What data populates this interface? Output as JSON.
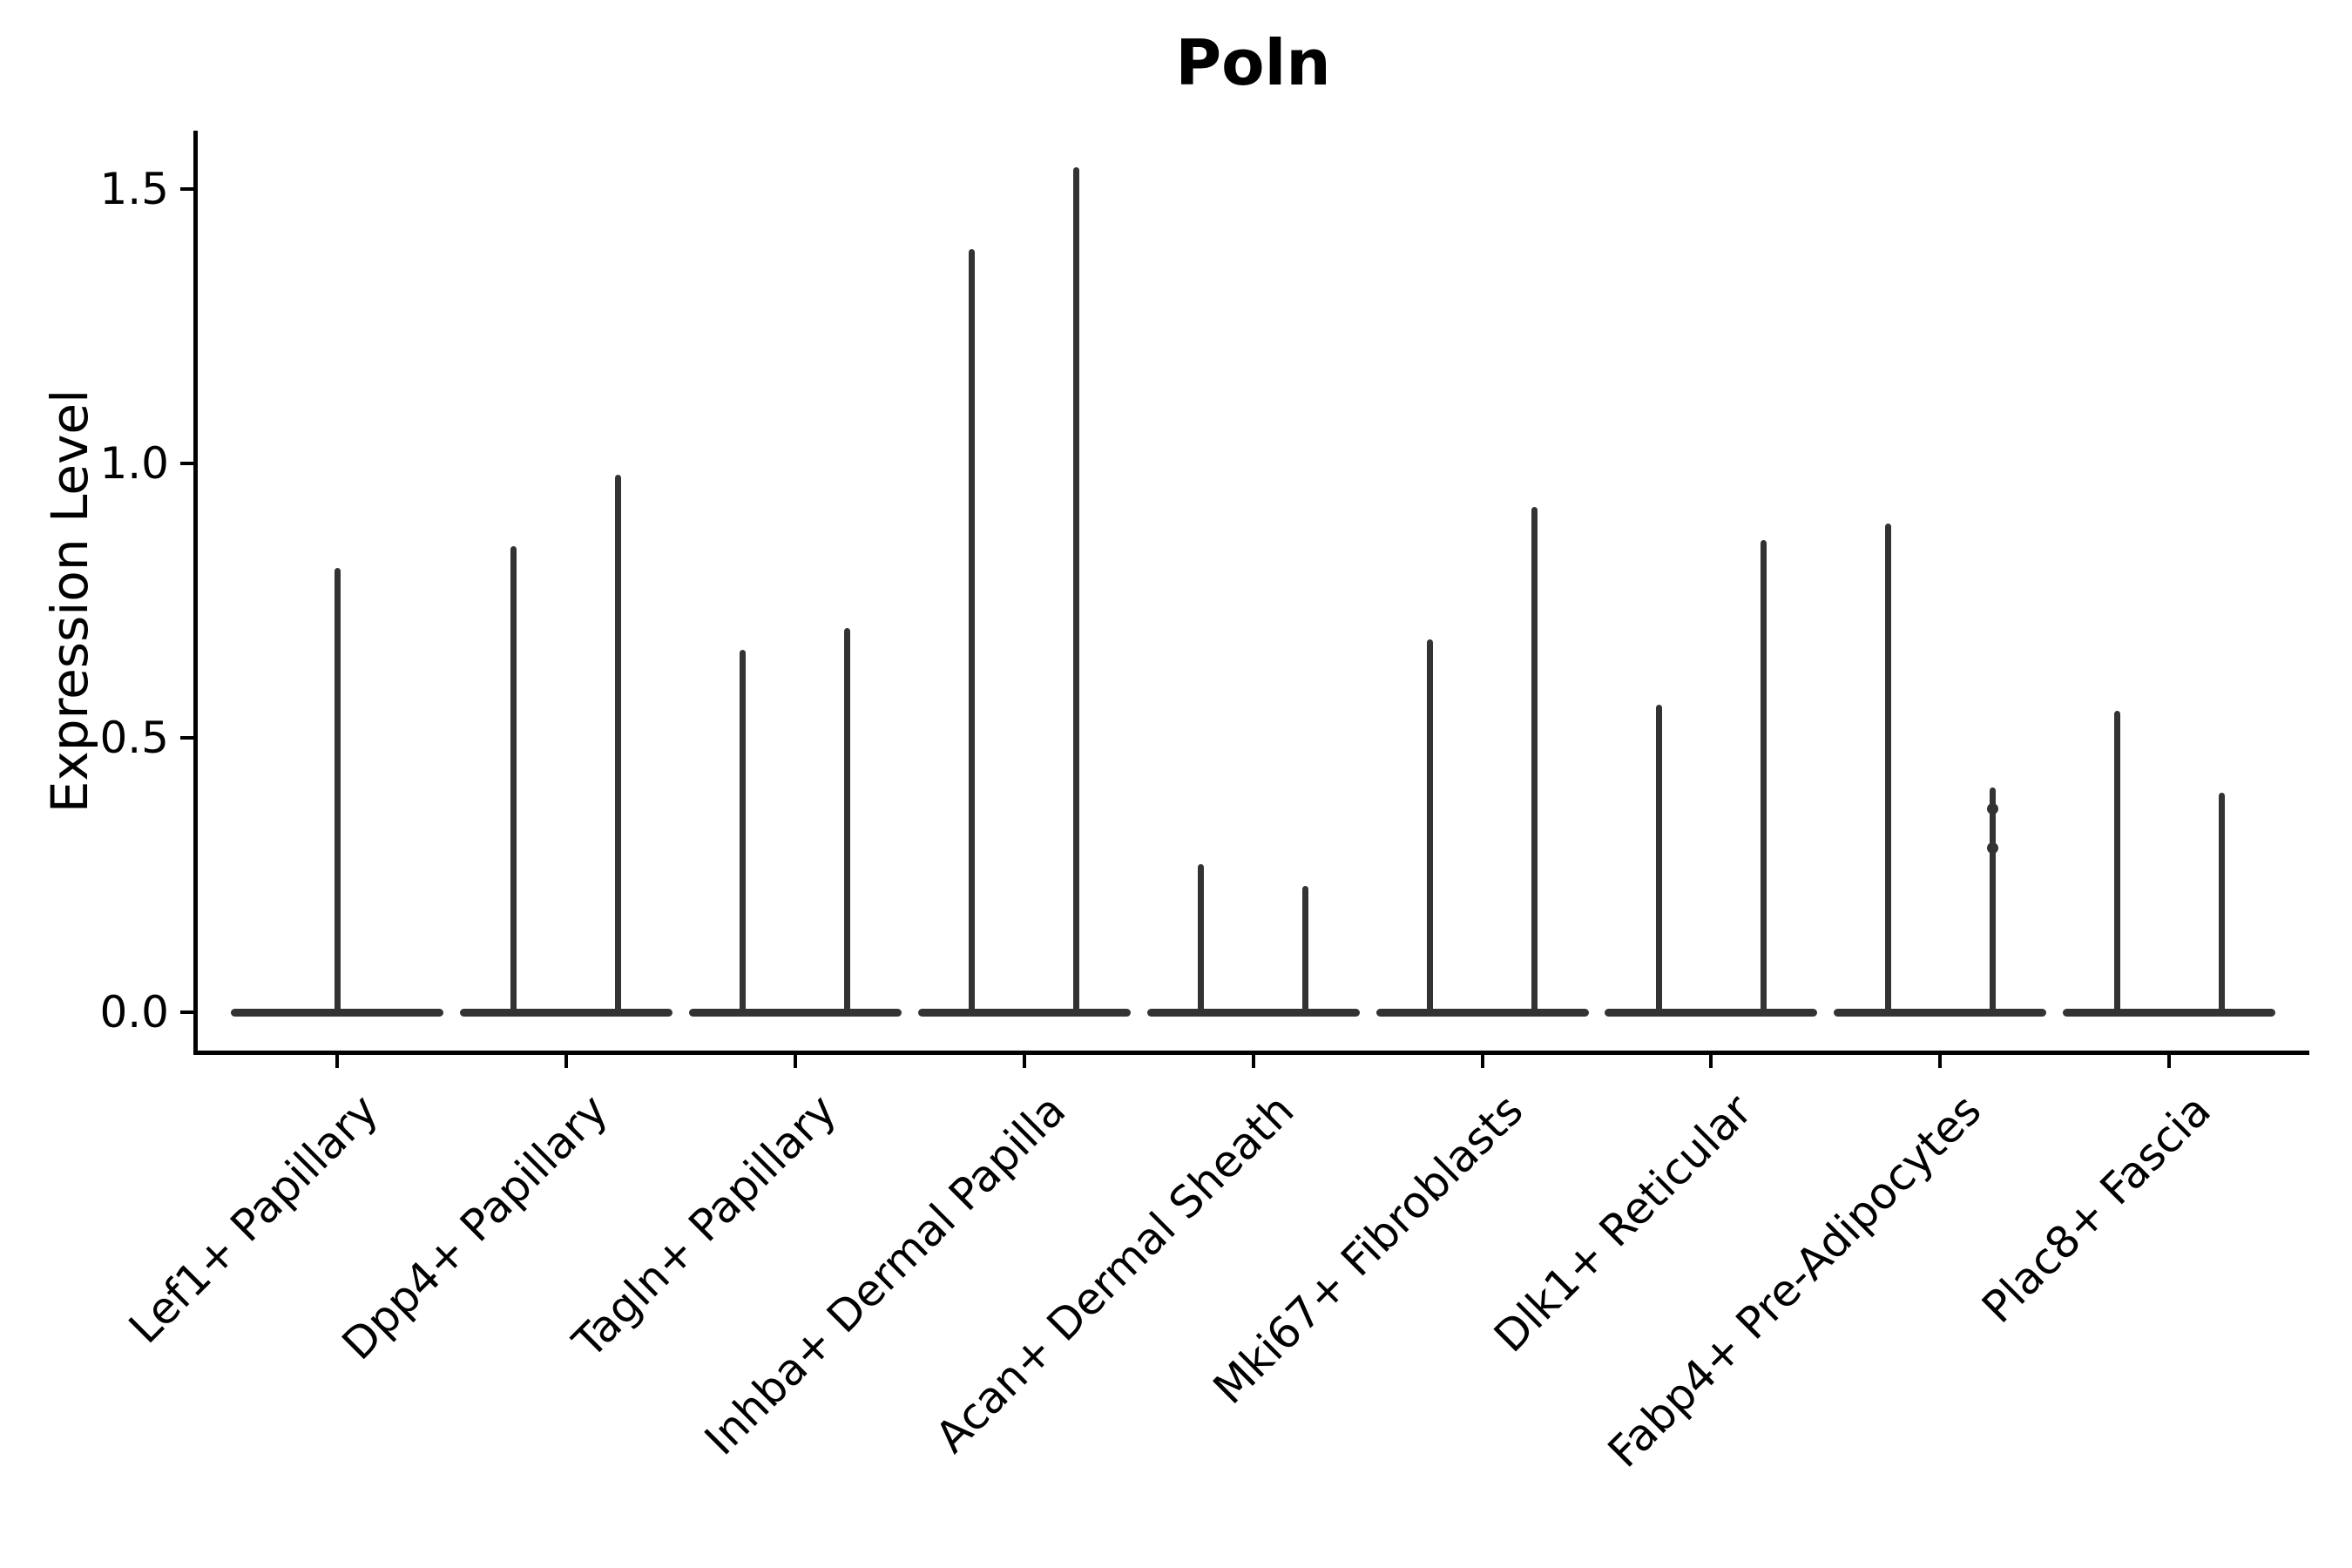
{
  "title": "Poln",
  "y_axis": {
    "label": "Expression Level",
    "tick_labels": [
      "0.0",
      "0.5",
      "1.0",
      "1.5"
    ]
  },
  "chart_data": {
    "type": "violin",
    "title": "Poln",
    "xlabel": "",
    "ylabel": "Expression Level",
    "ylim": [
      0,
      1.6
    ],
    "yticks": [
      0.0,
      0.5,
      1.0,
      1.5
    ],
    "ytick_labels": [
      "0.0",
      "0.5",
      "1.0",
      "1.5"
    ],
    "grid": false,
    "legend": null,
    "violin_color": "#333333",
    "axis_color": "#000000",
    "categories": [
      "Lef1+ Papillary",
      "Dpp4+ Papillary",
      "Tagln+ Papillary",
      "Inhba+ Dermal Papilla",
      "Acan+ Dermal Sheath",
      "Mki67+ Fibroblasts",
      "Dlk1+ Reticular",
      "Fabp4+ Pre-Adipocytes",
      "Plac8+ Fascia"
    ],
    "violins": [
      {
        "category": "Lef1+ Papillary",
        "baseline": 0.0,
        "spikes": [
          {
            "pos": "center",
            "max": 0.81
          }
        ]
      },
      {
        "category": "Dpp4+ Papillary",
        "baseline": 0.0,
        "spikes": [
          {
            "pos": "left",
            "max": 0.85
          },
          {
            "pos": "right",
            "max": 0.98
          }
        ]
      },
      {
        "category": "Tagln+ Papillary",
        "baseline": 0.0,
        "spikes": [
          {
            "pos": "left",
            "max": 0.66
          },
          {
            "pos": "right",
            "max": 0.7
          }
        ]
      },
      {
        "category": "Inhba+ Dermal Papilla",
        "baseline": 0.0,
        "spikes": [
          {
            "pos": "left",
            "max": 1.39
          },
          {
            "pos": "right",
            "max": 1.54
          }
        ]
      },
      {
        "category": "Acan+ Dermal Sheath",
        "baseline": 0.0,
        "spikes": [
          {
            "pos": "left",
            "max": 0.27
          },
          {
            "pos": "right",
            "max": 0.23
          }
        ]
      },
      {
        "category": "Mki67+ Fibroblasts",
        "baseline": 0.0,
        "spikes": [
          {
            "pos": "left",
            "max": 0.68
          },
          {
            "pos": "right",
            "max": 0.92
          }
        ]
      },
      {
        "category": "Dlk1+ Reticular",
        "baseline": 0.0,
        "spikes": [
          {
            "pos": "left",
            "max": 0.56
          },
          {
            "pos": "right",
            "max": 0.86
          }
        ]
      },
      {
        "category": "Fabp4+ Pre-Adipocytes",
        "baseline": 0.0,
        "spikes": [
          {
            "pos": "left",
            "max": 0.89
          },
          {
            "pos": "right",
            "max": 0.41,
            "knots": [
              0.37,
              0.3
            ]
          }
        ]
      },
      {
        "category": "Plac8+ Fascia",
        "baseline": 0.0,
        "spikes": [
          {
            "pos": "left",
            "max": 0.55
          },
          {
            "pos": "right",
            "max": 0.4
          }
        ]
      }
    ]
  }
}
